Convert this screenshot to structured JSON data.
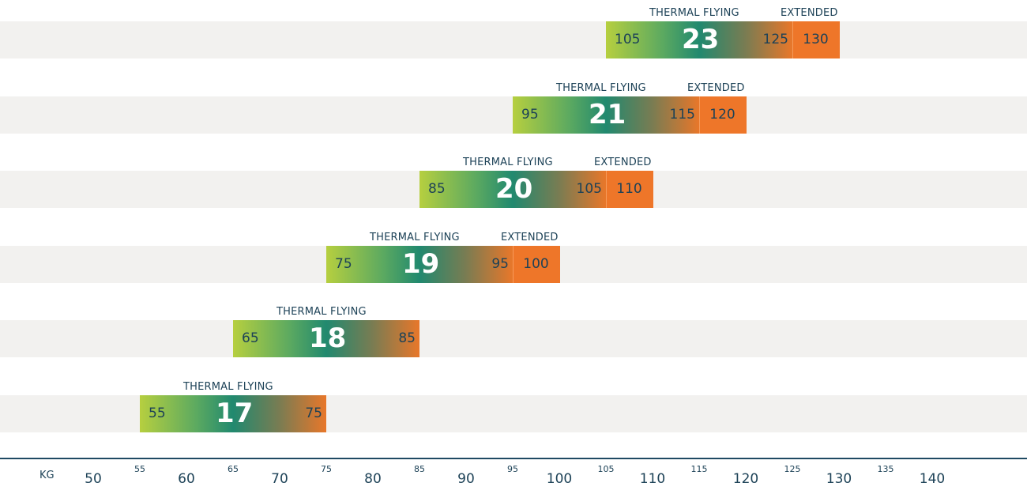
{
  "chart_data": {
    "type": "bar",
    "title": "",
    "xlabel": "KG",
    "ylabel": "",
    "xlim": [
      50,
      140
    ],
    "x_unit_label": "KG",
    "x_ticks_major": [
      "50",
      "60",
      "70",
      "80",
      "90",
      "100",
      "110",
      "120",
      "130",
      "140"
    ],
    "x_ticks_minor": [
      "55",
      "65",
      "75",
      "85",
      "95",
      "105",
      "115",
      "125",
      "135"
    ],
    "range_label": "THERMAL FLYING",
    "extended_label": "EXTENDED",
    "series": [
      {
        "name": "17",
        "size": "17",
        "thermal_min": 55,
        "thermal_max": 75,
        "extended_max": null
      },
      {
        "name": "18",
        "size": "18",
        "thermal_min": 65,
        "thermal_max": 85,
        "extended_max": null
      },
      {
        "name": "19",
        "size": "19",
        "thermal_min": 75,
        "thermal_max": 95,
        "extended_max": 100
      },
      {
        "name": "20",
        "size": "20",
        "thermal_min": 85,
        "thermal_max": 105,
        "extended_max": 110
      },
      {
        "name": "21",
        "size": "21",
        "thermal_min": 95,
        "thermal_max": 115,
        "extended_max": 120
      },
      {
        "name": "23",
        "size": "23",
        "thermal_min": 105,
        "thermal_max": 125,
        "extended_max": 130
      }
    ],
    "colors": {
      "gradient_start": "#b6cf3f",
      "gradient_mid": "#21896f",
      "gradient_end": "#e8772a",
      "extended": "#ee7629",
      "band": "#f2f1ef",
      "text": "#1d4257"
    }
  }
}
